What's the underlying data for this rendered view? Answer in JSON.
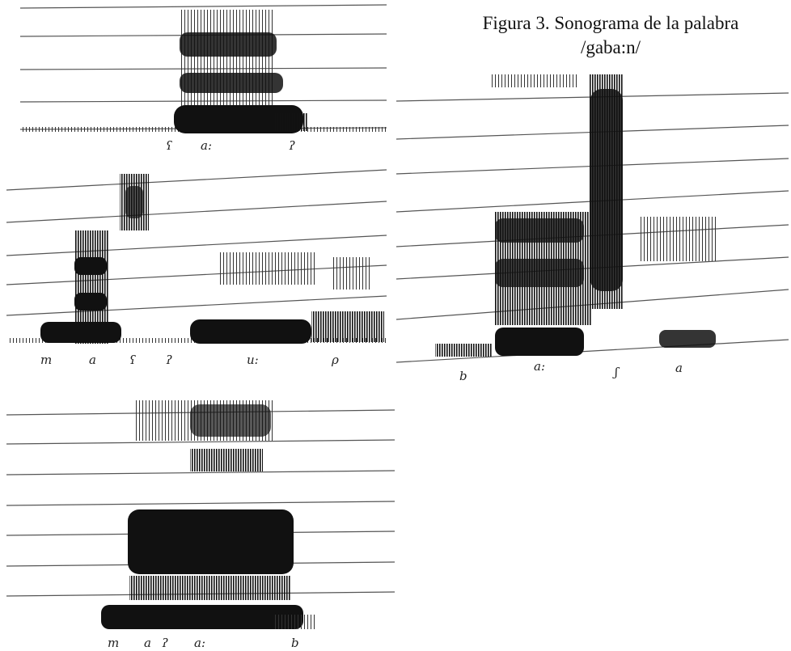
{
  "caption": {
    "line1": "Figura 3. Sonograma de la palabra",
    "line2": "/gaba:n/"
  },
  "spectrograms": [
    {
      "segments": [
        "ʕ",
        "a:",
        "ʔ"
      ]
    },
    {
      "segments": [
        "m",
        "a",
        "ʕ",
        "ʔ",
        "u:",
        "ρ"
      ]
    },
    {
      "segments": [
        "m",
        "a",
        "ʔ",
        "a:",
        "b"
      ]
    },
    {
      "segments": [
        "b",
        "a:",
        "ʃ",
        "a"
      ]
    }
  ],
  "colors": {
    "ink": "#1a1a1a",
    "ruling": "#555555"
  }
}
